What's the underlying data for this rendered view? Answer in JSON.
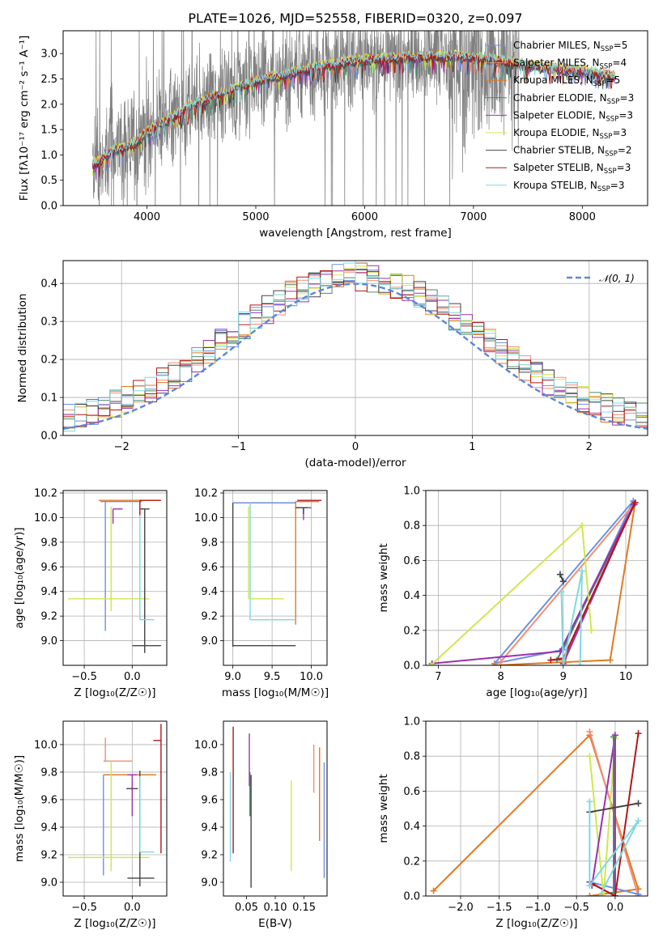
{
  "chart_data": [
    {
      "type": "line",
      "title": "PLATE=1026, MJD=52558, FIBERID=0320, z=0.097",
      "xlabel": "wavelength [Angstrom, rest frame]",
      "ylabel": "Flux [fλ10⁻¹⁷ erg cm⁻² s⁻¹ A⁻¹]",
      "xlim": [
        3230,
        8600
      ],
      "ylim": [
        0,
        3.45
      ],
      "xticks": [
        "4000",
        "5000",
        "6000",
        "7000",
        "8000"
      ],
      "yticks": [
        "0.0",
        "0.5",
        "1.0",
        "1.5",
        "2.0",
        "2.5",
        "3.0"
      ],
      "grid": false,
      "legend_position": "top-right",
      "spectrum_shape": {
        "wavelength": [
          3500,
          3600,
          3700,
          3800,
          3900,
          4000,
          4200,
          4400,
          4600,
          4800,
          5000,
          5300,
          5600,
          5900,
          6200,
          6500,
          6800,
          7100,
          7400,
          7700,
          8000,
          8300
        ],
        "flux": [
          0.8,
          0.95,
          1.1,
          1.15,
          1.25,
          1.45,
          1.7,
          1.95,
          2.15,
          2.3,
          2.45,
          2.6,
          2.75,
          2.85,
          2.9,
          2.93,
          2.95,
          2.9,
          2.8,
          2.7,
          2.65,
          2.55
        ]
      },
      "series": [
        {
          "name": "Chabrier MILES, N",
          "sub": "SSP",
          "suffix": "=5",
          "color": "#6f8fe0"
        },
        {
          "name": "Salpeter MILES, N",
          "sub": "SSP",
          "suffix": "=4",
          "color": "#ef8e78"
        },
        {
          "name": "Kroupa MILES, N",
          "sub": "SSP",
          "suffix": "=5",
          "color": "#e07b22"
        },
        {
          "name": "Chabrier ELODIE, N",
          "sub": "SSP",
          "suffix": "=3",
          "color": "#4e8a6a"
        },
        {
          "name": "Salpeter ELODIE, N",
          "sub": "SSP",
          "suffix": "=3",
          "color": "#9b30b0"
        },
        {
          "name": "Kroupa ELODIE, N",
          "sub": "SSP",
          "suffix": "=3",
          "color": "#cde84f"
        },
        {
          "name": "Chabrier STELIB, N",
          "sub": "SSP",
          "suffix": "=2",
          "color": "#444444"
        },
        {
          "name": "Salpeter STELIB, N",
          "sub": "SSP",
          "suffix": "=3",
          "color": "#b01818"
        },
        {
          "name": "Kroupa STELIB, N",
          "sub": "SSP",
          "suffix": "=3",
          "color": "#80d8e0"
        }
      ]
    },
    {
      "type": "line",
      "xlabel": "(data-model)/error",
      "ylabel": "Normed distribution",
      "xlim": [
        -2.5,
        2.5
      ],
      "ylim": [
        0,
        0.46
      ],
      "xticks": [
        "−2",
        "−1",
        "0",
        "1",
        "2"
      ],
      "yticks": [
        "0.0",
        "0.1",
        "0.2",
        "0.3",
        "0.4"
      ],
      "grid": true,
      "legend": "𝒩(0, 1)",
      "legend_position": "top-right",
      "gaussian": {
        "mean": 0,
        "sigma": 1,
        "color": "#5b87d9"
      },
      "histogram_bins": 50
    },
    {
      "type": "scatter",
      "xlabel": "Z [log₁₀(Z/Z☉)]",
      "ylabel": "age  [log₁₀(age/yr)]",
      "xlim": [
        -0.72,
        0.36
      ],
      "ylim": [
        8.8,
        10.22
      ],
      "xticks": [
        "−0.5",
        "0.0"
      ],
      "yticks": [
        "9.0",
        "9.2",
        "9.4",
        "9.6",
        "9.8",
        "10.0",
        "10.2"
      ],
      "grid": true,
      "errorbars": [
        {
          "color": "#6f8fe0",
          "x": -0.28,
          "y": 10.13,
          "xerr": [
            0.05,
            0.38
          ],
          "yerr": [
            1.05,
            0.0
          ]
        },
        {
          "color": "#e07b22",
          "x": -0.05,
          "y": 10.14,
          "xerr": [
            0.3,
            0.35
          ],
          "yerr": [
            0.0,
            0.0
          ]
        },
        {
          "color": "#cde84f",
          "x": -0.22,
          "y": 9.34,
          "xerr": [
            0.45,
            0.4
          ],
          "yerr": [
            0.1,
            0.75
          ]
        },
        {
          "color": "#cde84f",
          "x": -0.22,
          "y": 9.95,
          "xerr": [
            0.0,
            0.0
          ],
          "yerr": [
            0.7,
            0.12
          ]
        },
        {
          "color": "#9b30b0",
          "x": -0.2,
          "y": 10.07,
          "xerr": [
            0.0,
            0.1
          ],
          "yerr": [
            0.12,
            0.0
          ]
        },
        {
          "color": "#444444",
          "x": 0.13,
          "y": 10.07,
          "xerr": [
            0.05,
            0.05
          ],
          "yerr": [
            1.17,
            0.0
          ]
        },
        {
          "color": "#444444",
          "x": 0.1,
          "y": 8.96,
          "xerr": [
            0.1,
            0.2
          ],
          "yerr": [
            0.0,
            0.0
          ]
        },
        {
          "color": "#80d8e0",
          "x": 0.08,
          "y": 9.17,
          "xerr": [
            0.0,
            0.15
          ],
          "yerr": [
            0.0,
            0.98
          ]
        },
        {
          "color": "#b01818",
          "x": 0.08,
          "y": 10.14,
          "xerr": [
            0.0,
            0.22
          ],
          "yerr": [
            0.12,
            0.0
          ]
        }
      ]
    },
    {
      "type": "scatter",
      "xlabel": "mass [log₁₀(M/M☉)]",
      "ylabel": "",
      "xlim": [
        8.88,
        10.2
      ],
      "ylim": [
        8.8,
        10.22
      ],
      "xticks": [
        "9.0",
        "9.5",
        "10.0"
      ],
      "yticks": [
        "9.0",
        "9.2",
        "9.4",
        "9.6",
        "9.8",
        "10.0",
        "10.2"
      ],
      "grid": true,
      "errorbars": [
        {
          "color": "#444444",
          "x": 9.0,
          "y": 10.12,
          "xerr": [
            0.0,
            0.8
          ],
          "yerr": [
            1.17,
            0.0
          ]
        },
        {
          "color": "#444444",
          "x": 9.4,
          "y": 8.96,
          "xerr": [
            0.4,
            0.4
          ],
          "yerr": [
            0.0,
            0.0
          ]
        },
        {
          "color": "#6f8fe0",
          "x": 9.0,
          "y": 10.12,
          "xerr": [
            0.0,
            0.8
          ],
          "yerr": [
            0.0,
            0.0
          ]
        },
        {
          "color": "#e07b22",
          "x": 9.8,
          "y": 10.13,
          "xerr": [
            0.0,
            0.3
          ],
          "yerr": [
            1.0,
            0.0
          ]
        },
        {
          "color": "#80d8e0",
          "x": 9.22,
          "y": 9.17,
          "xerr": [
            0.0,
            0.58
          ],
          "yerr": [
            0.0,
            0.95
          ]
        },
        {
          "color": "#cde84f",
          "x": 9.2,
          "y": 9.34,
          "xerr": [
            0.0,
            0.45
          ],
          "yerr": [
            0.0,
            0.75
          ]
        },
        {
          "color": "#9b30b0",
          "x": 9.9,
          "y": 10.08,
          "xerr": [
            0.1,
            0.1
          ],
          "yerr": [
            0.1,
            0.0
          ]
        },
        {
          "color": "#444444",
          "x": 9.9,
          "y": 10.08,
          "xerr": [
            0.1,
            0.05
          ],
          "yerr": [
            0.05,
            0.0
          ]
        },
        {
          "color": "#b01818",
          "x": 10.0,
          "y": 10.14,
          "xerr": [
            0.18,
            0.13
          ],
          "yerr": [
            0.0,
            0.0
          ]
        }
      ]
    },
    {
      "type": "line",
      "xlabel": "age  [log₁₀(age/yr)]",
      "ylabel": "mass weight",
      "xlim": [
        6.8,
        10.35
      ],
      "ylim": [
        0,
        1.0
      ],
      "xticks": [
        "7",
        "8",
        "9",
        "10"
      ],
      "yticks": [
        "0.0",
        "0.2",
        "0.4",
        "0.6",
        "0.8",
        "1.0"
      ],
      "grid": true,
      "series": [
        {
          "color": "#6f8fe0",
          "x": [
            9.0,
            10.12,
            7.9,
            9.0
          ],
          "y": [
            0.09,
            0.94,
            0.01,
            0.09
          ]
        },
        {
          "color": "#ef8e78",
          "x": [
            8.0,
            10.15
          ],
          "y": [
            0.02,
            0.93
          ]
        },
        {
          "color": "#e07b22",
          "x": [
            7.9,
            9.75,
            10.15,
            9.0
          ],
          "y": [
            0.0,
            0.03,
            0.93,
            0.03
          ]
        },
        {
          "color": "#4e8a6a",
          "x": [
            8.9,
            10.14
          ],
          "y": [
            0.03,
            0.92
          ]
        },
        {
          "color": "#9b30b0",
          "x": [
            6.9,
            8.95,
            10.13,
            9.0
          ],
          "y": [
            0.01,
            0.08,
            0.92,
            0.01
          ]
        },
        {
          "color": "#cde84f",
          "x": [
            6.88,
            9.3,
            9.45
          ],
          "y": [
            0.0,
            0.8,
            0.2
          ]
        },
        {
          "color": "#444444",
          "x": [
            8.95,
            9.0
          ],
          "y": [
            0.52,
            0.48
          ]
        },
        {
          "color": "#b01818",
          "x": [
            8.8,
            9.0,
            10.15
          ],
          "y": [
            0.03,
            0.04,
            0.93
          ]
        },
        {
          "color": "#80d8e0",
          "x": [
            8.97,
            9.0,
            9.3,
            9.27
          ],
          "y": [
            0.42,
            0.0,
            0.54,
            0.0
          ]
        }
      ]
    },
    {
      "type": "scatter",
      "xlabel": "Z [log₁₀(Z/Z☉)]",
      "ylabel": "mass [log₁₀(M/M☉)]",
      "xlim": [
        -0.72,
        0.36
      ],
      "ylim": [
        8.9,
        10.17
      ],
      "xticks": [
        "−0.5",
        "0.0"
      ],
      "yticks": [
        "9.0",
        "9.2",
        "9.4",
        "9.6",
        "9.8",
        "10.0"
      ],
      "grid": true,
      "errorbars": [
        {
          "color": "#6f8fe0",
          "x": -0.3,
          "y": 9.78,
          "xerr": [
            0.0,
            0.55
          ],
          "yerr": [
            0.73,
            0.0
          ]
        },
        {
          "color": "#ef8e78",
          "x": -0.1,
          "y": 9.88,
          "xerr": [
            0.2,
            0.1
          ],
          "yerr": [
            0.0,
            0.0
          ]
        },
        {
          "color": "#e07b22",
          "x": -0.3,
          "y": 9.78,
          "xerr": [
            0.0,
            0.55
          ],
          "yerr": [
            0.0,
            0.0
          ]
        },
        {
          "color": "#ef8e78",
          "x": -0.28,
          "y": 9.88,
          "xerr": [
            0.0,
            0.0
          ],
          "yerr": [
            0.0,
            0.17
          ]
        },
        {
          "color": "#cde84f",
          "x": -0.22,
          "y": 9.18,
          "xerr": [
            0.45,
            0.4
          ],
          "yerr": [
            0.1,
            0.7
          ]
        },
        {
          "color": "#9b30b0",
          "x": 0.0,
          "y": 9.78,
          "xerr": [
            0.05,
            0.05
          ],
          "yerr": [
            0.3,
            0.0
          ]
        },
        {
          "color": "#444444",
          "x": 0.06,
          "y": 9.68,
          "xerr": [
            0.12,
            0.0
          ],
          "yerr": [
            0.0,
            0.0
          ]
        },
        {
          "color": "#444444",
          "x": 0.08,
          "y": 9.03,
          "xerr": [
            0.13,
            0.15
          ],
          "yerr": [
            0.06,
            0.78
          ]
        },
        {
          "color": "#80d8e0",
          "x": 0.08,
          "y": 9.22,
          "xerr": [
            0.0,
            0.15
          ],
          "yerr": [
            0.0,
            0.55
          ]
        },
        {
          "color": "#b01818",
          "x": 0.3,
          "y": 10.03,
          "xerr": [
            0.08,
            0.0
          ],
          "yerr": [
            0.82,
            0.12
          ]
        }
      ]
    },
    {
      "type": "scatter",
      "xlabel": "E(B-V)",
      "ylabel": "",
      "xlim": [
        0.01,
        0.19
      ],
      "ylim": [
        8.9,
        10.17
      ],
      "xticks": [
        "0.05",
        "0.10",
        "0.15"
      ],
      "yticks": [
        "9.0",
        "9.2",
        "9.4",
        "9.6",
        "9.8",
        "10.0"
      ],
      "grid": false,
      "errorbars": [
        {
          "color": "#80d8e0",
          "x": 0.022,
          "y": 9.45,
          "yerr": [
            0.3,
            0.35
          ]
        },
        {
          "color": "#b01818",
          "x": 0.027,
          "y": 9.66,
          "yerr": [
            0.45,
            0.47
          ]
        },
        {
          "color": "#4e8a6a",
          "x": 0.056,
          "y": 9.6,
          "yerr": [
            0.12,
            0.2
          ]
        },
        {
          "color": "#9b30b0",
          "x": 0.055,
          "y": 9.8,
          "yerr": [
            0.1,
            0.28
          ]
        },
        {
          "color": "#444444",
          "x": 0.058,
          "y": 9.4,
          "yerr": [
            0.44,
            0.38
          ]
        },
        {
          "color": "#cde84f",
          "x": 0.128,
          "y": 9.41,
          "yerr": [
            0.33,
            0.33
          ]
        },
        {
          "color": "#ef8e78",
          "x": 0.167,
          "y": 9.83,
          "yerr": [
            0.18,
            0.17
          ]
        },
        {
          "color": "#e07b22",
          "x": 0.177,
          "y": 9.64,
          "yerr": [
            0.34,
            0.34
          ]
        },
        {
          "color": "#6f8fe0",
          "x": 0.185,
          "y": 9.45,
          "yerr": [
            0.42,
            0.42
          ]
        }
      ]
    },
    {
      "type": "line",
      "xlabel": "Z [log₁₀(Z/Z☉)]",
      "ylabel": "mass weight",
      "xlim": [
        -2.45,
        0.42
      ],
      "ylim": [
        0,
        1.0
      ],
      "xticks": [
        "−2.0",
        "−1.5",
        "−1.0",
        "−0.5",
        "0.0"
      ],
      "yticks": [
        "0.0",
        "0.2",
        "0.4",
        "0.6",
        "0.8",
        "1.0"
      ],
      "grid": true,
      "series": [
        {
          "color": "#e07b22",
          "x": [
            -2.35,
            -0.33,
            0.3,
            -0.33
          ],
          "y": [
            0.03,
            0.92,
            0.04,
            0.0
          ]
        },
        {
          "color": "#ef8e78",
          "x": [
            -0.33,
            0.3
          ],
          "y": [
            0.94,
            0.0
          ]
        },
        {
          "color": "#6f8fe0",
          "x": [
            -0.33,
            0.3
          ],
          "y": [
            0.08,
            0.01
          ]
        },
        {
          "color": "#cde84f",
          "x": [
            -0.33,
            -0.15,
            0.0
          ],
          "y": [
            0.8,
            0.0,
            0.9
          ]
        },
        {
          "color": "#9b30b0",
          "x": [
            -0.33,
            0.0,
            0.0,
            -0.3
          ],
          "y": [
            0.08,
            0.0,
            0.92,
            0.06
          ]
        },
        {
          "color": "#4e8a6a",
          "x": [
            -0.02,
            -0.02
          ],
          "y": [
            0.02,
            0.91
          ]
        },
        {
          "color": "#444444",
          "x": [
            -0.33,
            0.3
          ],
          "y": [
            0.48,
            0.53
          ]
        },
        {
          "color": "#b01818",
          "x": [
            -0.3,
            0.0,
            0.3
          ],
          "y": [
            0.07,
            0.0,
            0.93
          ]
        },
        {
          "color": "#80d8e0",
          "x": [
            -0.33,
            -0.33,
            0.3,
            -0.2
          ],
          "y": [
            0.54,
            0.06,
            0.43,
            0.0
          ]
        }
      ]
    }
  ]
}
